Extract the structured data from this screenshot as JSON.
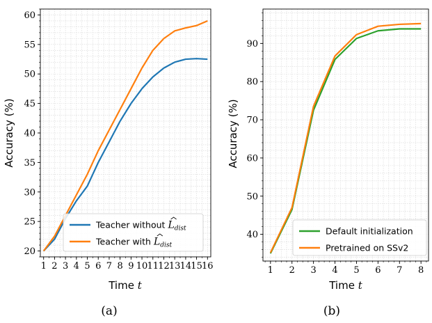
{
  "chart_data": [
    {
      "type": "line",
      "caption": "(a)",
      "xlabel": "Time",
      "xlabel_var": "t",
      "ylabel": "Accuracy (%)",
      "categories": [
        1,
        2,
        3,
        4,
        5,
        6,
        7,
        8,
        9,
        10,
        11,
        12,
        13,
        14,
        15,
        16
      ],
      "tick_labels": [
        "1",
        "2",
        "3",
        "4",
        "5",
        "6",
        "7",
        "8",
        "9",
        "10",
        "11",
        "12",
        "13",
        "14",
        "15",
        "16"
      ],
      "y_ticks": [
        "20",
        "25",
        "30",
        "35",
        "40",
        "45",
        "50",
        "55",
        "60"
      ],
      "ylim": [
        19,
        61
      ],
      "xlim": [
        0.7,
        16.3
      ],
      "grid": true,
      "legend_position": "bottom-right",
      "series": [
        {
          "name": "Teacher without ",
          "name_math": "L",
          "name_sub": "dist",
          "color": "#1f77b4",
          "values": [
            20.0,
            22.0,
            25.5,
            28.5,
            31.0,
            35.0,
            38.5,
            42.0,
            45.0,
            47.5,
            49.5,
            51.0,
            52.0,
            52.5,
            52.6,
            52.5
          ]
        },
        {
          "name": "Teacher with ",
          "name_math": "L",
          "name_sub": "dist",
          "color": "#ff7f0e",
          "values": [
            20.0,
            22.5,
            26.0,
            29.5,
            33.0,
            37.0,
            40.5,
            44.0,
            47.5,
            51.0,
            54.0,
            56.0,
            57.3,
            57.8,
            58.2,
            59.0
          ]
        }
      ]
    },
    {
      "type": "line",
      "caption": "(b)",
      "xlabel": "Time",
      "xlabel_var": "t",
      "ylabel": "Accuracy (%)",
      "categories": [
        1,
        2,
        3,
        4,
        5,
        6,
        7,
        8
      ],
      "tick_labels": [
        "1",
        "2",
        "3",
        "4",
        "5",
        "6",
        "7",
        "8"
      ],
      "y_ticks": [
        "40",
        "50",
        "60",
        "70",
        "80",
        "90"
      ],
      "ylim": [
        33,
        99
      ],
      "xlim": [
        0.65,
        8.35
      ],
      "grid": true,
      "legend_position": "bottom-right",
      "series": [
        {
          "name": "Default initialization",
          "color": "#2ca02c",
          "values": [
            35.0,
            46.5,
            72.5,
            85.8,
            91.3,
            93.3,
            93.8,
            93.8
          ]
        },
        {
          "name": "Pretrained on SSv2",
          "color": "#ff7f0e",
          "values": [
            35.2,
            47.0,
            73.5,
            86.7,
            92.3,
            94.5,
            95.0,
            95.2
          ]
        }
      ]
    }
  ]
}
